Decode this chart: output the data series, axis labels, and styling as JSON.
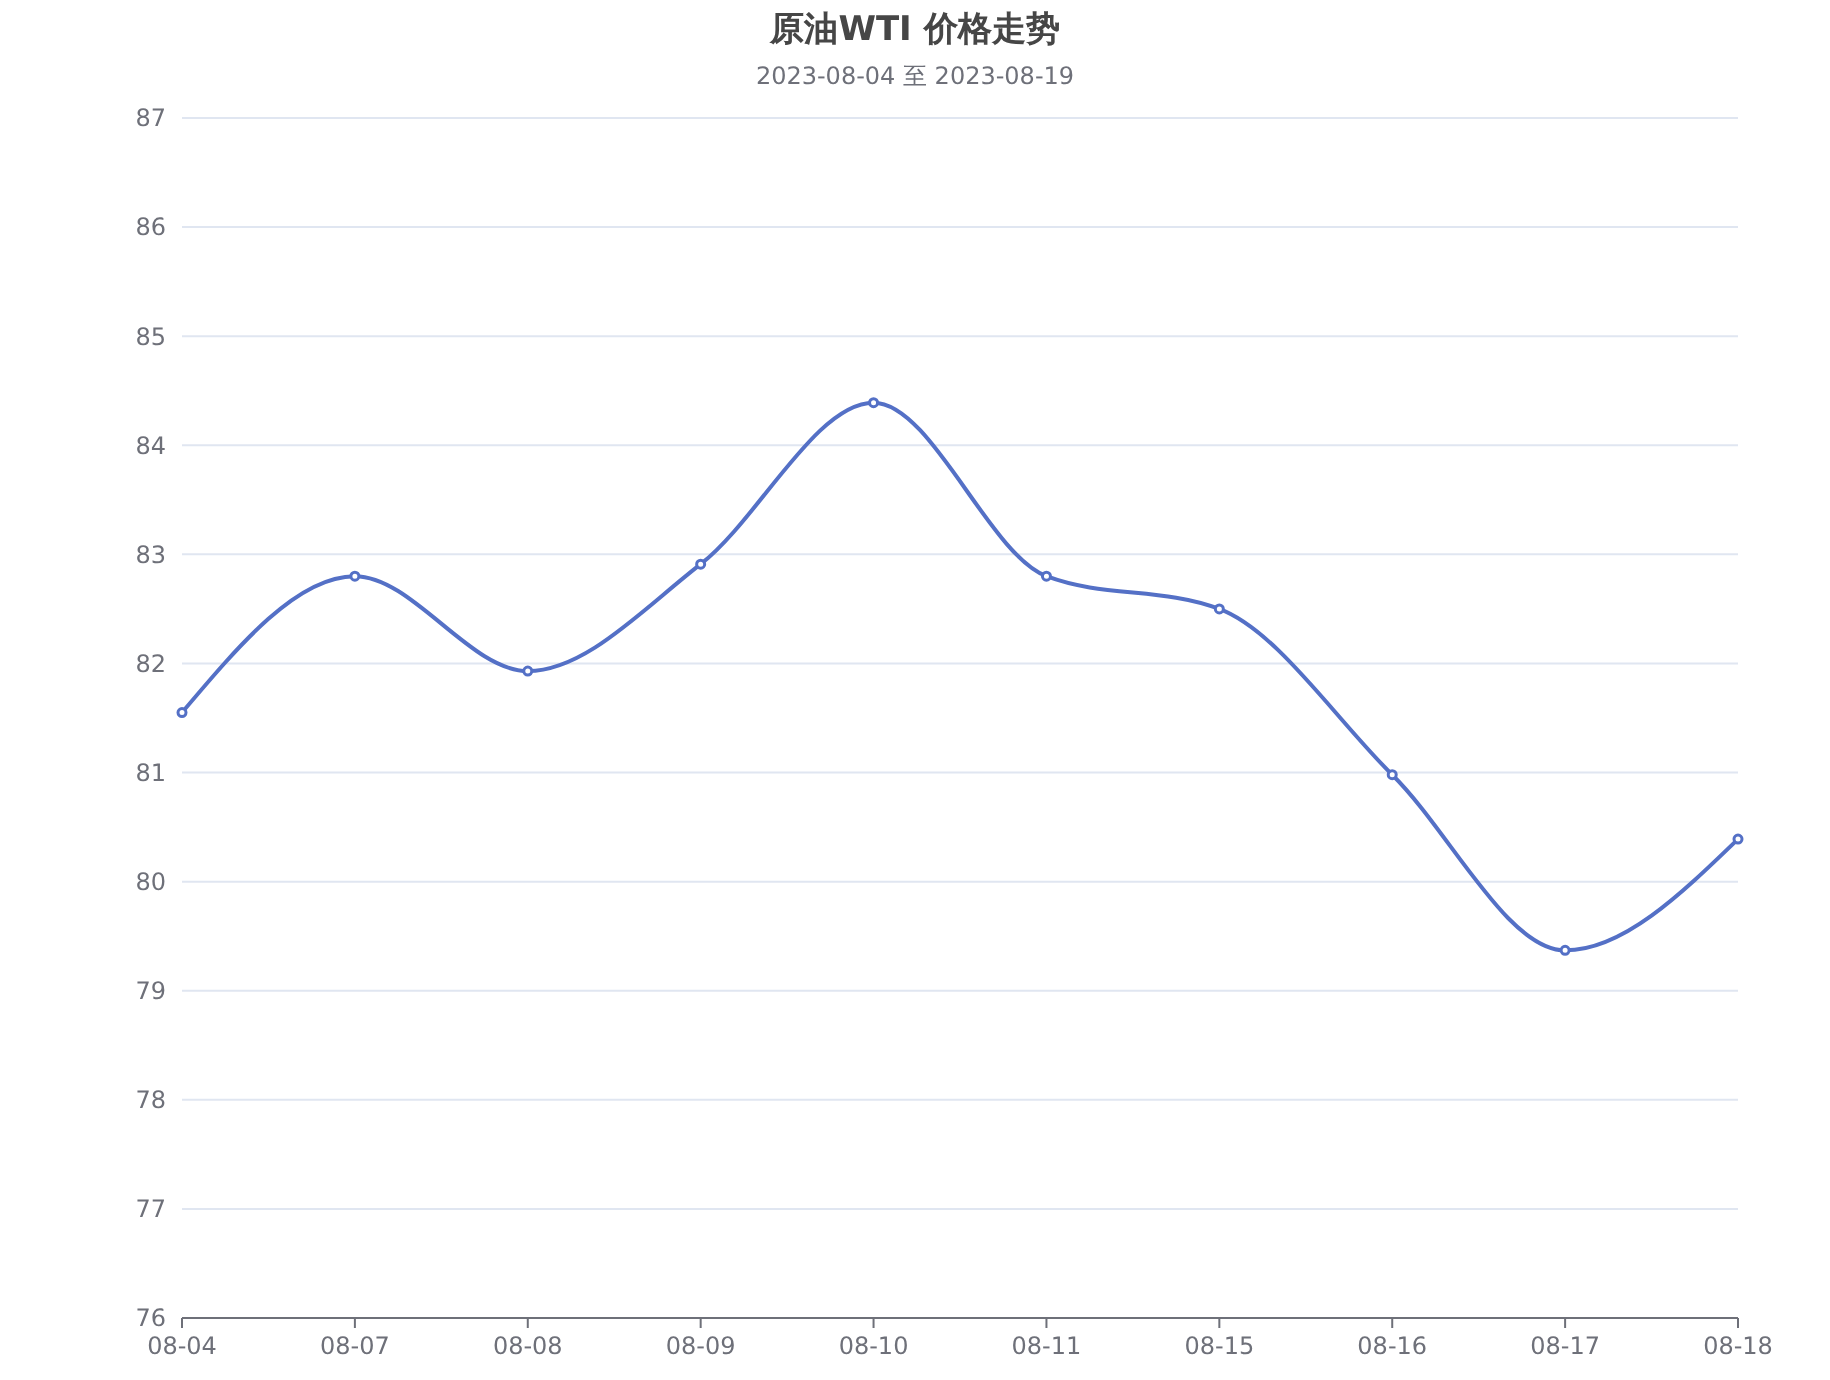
{
  "chart_data": {
    "type": "line",
    "title": "原油WTI 价格走势",
    "subtitle": "2023-08-04 至 2023-08-19",
    "categories": [
      "08-04",
      "08-07",
      "08-08",
      "08-09",
      "08-10",
      "08-11",
      "08-15",
      "08-16",
      "08-17",
      "08-18"
    ],
    "series": [
      {
        "color": "#5470c6",
        "values": [
          81.55,
          82.8,
          81.93,
          82.91,
          84.39,
          82.8,
          82.5,
          80.98,
          79.37,
          80.39
        ]
      }
    ],
    "ylim": [
      76,
      87
    ],
    "yticks": [
      76,
      77,
      78,
      79,
      80,
      81,
      82,
      83,
      84,
      85,
      86,
      87
    ],
    "grid": "y",
    "marker": "circle",
    "line_style": "solid"
  }
}
